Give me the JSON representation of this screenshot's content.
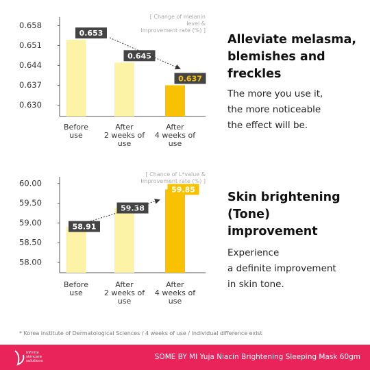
{
  "chart_data": [
    {
      "type": "bar",
      "annotation": "[ Change of melanin level &\nImprovement rate (%) ]",
      "categories": [
        "Before\nuse",
        "After\n2 weeks of\nuse",
        "After\n4 weeks of\nuse"
      ],
      "values": [
        0.653,
        0.645,
        0.637
      ],
      "colors": [
        "#fdf3a6",
        "#fdf3a6",
        "#f9c200"
      ],
      "ylim": [
        0.626,
        0.661
      ],
      "yticks": [
        0.658,
        0.651,
        0.644,
        0.637,
        {
          "value": 0.63,
          "label": "0.630"
        }
      ]
    },
    {
      "type": "bar",
      "annotation": "[ Chance of L*value &\nImprovement rate (%) ]",
      "categories": [
        "Before\nuse",
        "After\n2 weeks of\nuse",
        "After\n4 weeks of\nuse"
      ],
      "values": [
        58.91,
        59.38,
        59.85
      ],
      "colors": [
        "#fdf3a6",
        "#fdf3a6",
        "#f9c200"
      ],
      "ylim": [
        57.74,
        60.17
      ],
      "yticks": [
        {
          "value": 60,
          "label": "60.00"
        },
        {
          "value": 59.5,
          "label": "59.50"
        },
        {
          "value": 59,
          "label": "59.00"
        },
        {
          "value": 58.5,
          "label": "58.50"
        },
        {
          "value": 58,
          "label": "58.00"
        }
      ]
    }
  ],
  "sections": [
    {
      "heading": "Alleviate melasma,\nblemishes and\nfreckles",
      "body": "The more you use it,\nthe more noticeable\nthe effect will be."
    },
    {
      "heading": "Skin brightening\n(Tone)\nimprovement",
      "body": "Experience\na definite improvement\nin skin tone."
    }
  ],
  "footnote": "* Korea institute of Dermatological Sciences / 4 weeks of use / individual difference exist",
  "footer": {
    "logo": "infinity\nskincare\nsolutions",
    "product": "SOME BY MI Yuja Niacin Brightening Sleeping Mask 60gm"
  }
}
